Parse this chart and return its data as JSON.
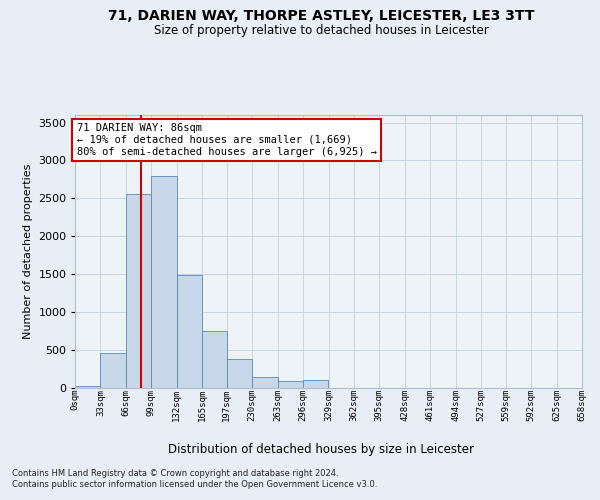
{
  "title_line1": "71, DARIEN WAY, THORPE ASTLEY, LEICESTER, LE3 3TT",
  "title_line2": "Size of property relative to detached houses in Leicester",
  "xlabel": "Distribution of detached houses by size in Leicester",
  "ylabel": "Number of detached properties",
  "property_size": 86,
  "annotation_line1": "71 DARIEN WAY: 86sqm",
  "annotation_line2": "← 19% of detached houses are smaller (1,669)",
  "annotation_line3": "80% of semi-detached houses are larger (6,925) →",
  "footer_line1": "Contains HM Land Registry data © Crown copyright and database right 2024.",
  "footer_line2": "Contains public sector information licensed under the Open Government Licence v3.0.",
  "bar_color": "#c8d8ea",
  "bar_edge_color": "#5a8ab5",
  "vline_color": "#cc0000",
  "background_color": "#e8eef5",
  "plot_bg_color": "#eef3f8",
  "grid_color": "#c8d4e4",
  "bin_edges": [
    0,
    33,
    66,
    99,
    132,
    165,
    197,
    230,
    263,
    296,
    329,
    362,
    395,
    428,
    461,
    494,
    527,
    559,
    592,
    625,
    658
  ],
  "bin_labels": [
    "0sqm",
    "33sqm",
    "66sqm",
    "99sqm",
    "132sqm",
    "165sqm",
    "197sqm",
    "230sqm",
    "263sqm",
    "296sqm",
    "329sqm",
    "362sqm",
    "395sqm",
    "428sqm",
    "461sqm",
    "494sqm",
    "527sqm",
    "559sqm",
    "592sqm",
    "625sqm",
    "658sqm"
  ],
  "bar_heights": [
    20,
    450,
    2550,
    2800,
    1480,
    740,
    370,
    140,
    80,
    100,
    0,
    0,
    0,
    0,
    0,
    0,
    0,
    0,
    0,
    0
  ],
  "ylim": [
    0,
    3600
  ],
  "yticks": [
    0,
    500,
    1000,
    1500,
    2000,
    2500,
    3000,
    3500
  ]
}
